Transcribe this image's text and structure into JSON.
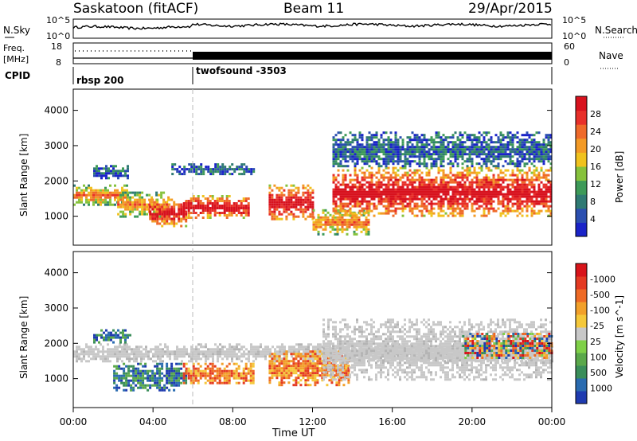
{
  "header": {
    "site": "Saskatoon (fitACF)",
    "beam": "Beam 11",
    "date": "29/Apr/2015"
  },
  "noise_panel": {
    "left_label": "N.Sky",
    "right_label": "N.Search",
    "left_ticks": [
      "10^5",
      "10^0"
    ],
    "right_ticks": [
      "10^5",
      "10^0"
    ]
  },
  "freq_panel": {
    "left_label_1": "Freq.",
    "left_label_2": "[MHz]",
    "left_ticks": [
      "18",
      "8"
    ],
    "right_label": "Nave",
    "right_ticks": [
      "60",
      "0"
    ]
  },
  "cpid_panel": {
    "label": "CPID",
    "programs": [
      {
        "name": "rbsp 200",
        "start_hour": 0
      },
      {
        "name": "twofsound -3503",
        "start_hour": 6
      }
    ]
  },
  "chart_data": [
    {
      "type": "heatmap",
      "panel": "power",
      "ylabel": "Slant Range [km]",
      "ylim": [
        180,
        4600
      ],
      "yticks": [
        1000,
        2000,
        3000,
        4000
      ],
      "colorbar": {
        "label": "Power [dB]",
        "ticks": [
          "4",
          "8",
          "12",
          "16",
          "20",
          "24",
          "28"
        ],
        "colors": [
          "#1a23c8",
          "#2b4fb0",
          "#2f7a73",
          "#3d9a58",
          "#86c23c",
          "#f0c21e",
          "#f39a26",
          "#ef6a2a",
          "#e8302a",
          "#d8121e"
        ]
      },
      "regions": [
        {
          "t": [
            0.0,
            2.7
          ],
          "r": [
            1350,
            1900
          ],
          "level": "mid"
        },
        {
          "t": [
            1.0,
            2.7
          ],
          "r": [
            2100,
            2450
          ],
          "level": "low"
        },
        {
          "t": [
            2.2,
            4.8
          ],
          "r": [
            1000,
            1700
          ],
          "level": "mid"
        },
        {
          "t": [
            3.8,
            5.6
          ],
          "r": [
            750,
            1500
          ],
          "level": "high"
        },
        {
          "t": [
            4.8,
            9.0
          ],
          "r": [
            2200,
            2500
          ],
          "level": "low"
        },
        {
          "t": [
            5.5,
            8.8
          ],
          "r": [
            950,
            1600
          ],
          "level": "high"
        },
        {
          "t": [
            9.8,
            12.0
          ],
          "r": [
            900,
            1900
          ],
          "level": "high"
        },
        {
          "t": [
            12.0,
            14.8
          ],
          "r": [
            500,
            1200
          ],
          "level": "mid"
        },
        {
          "t": [
            13.0,
            24.0
          ],
          "r": [
            1000,
            2400
          ],
          "level": "high"
        },
        {
          "t": [
            13.0,
            24.0
          ],
          "r": [
            2400,
            3400
          ],
          "level": "low"
        }
      ]
    },
    {
      "type": "heatmap",
      "panel": "velocity",
      "ylabel": "Slant Range [km]",
      "ylim": [
        180,
        4600
      ],
      "yticks": [
        1000,
        2000,
        3000,
        4000
      ],
      "colorbar": {
        "label": "Velocity [m s^-1]",
        "ticks": [
          "1000",
          "500",
          "100",
          "25",
          "-25",
          "-100",
          "-500",
          "-1000"
        ],
        "colors": [
          "#1f3bb0",
          "#2a6bb0",
          "#3a8e5a",
          "#5aa84a",
          "#7fd048",
          "#c8c8c8",
          "#f5c83a",
          "#f2a02a",
          "#ee6a25",
          "#e43a22",
          "#d8141a"
        ]
      },
      "regions": [
        {
          "t": [
            0.0,
            24.0
          ],
          "r": [
            1500,
            2000
          ],
          "level": "ground"
        },
        {
          "t": [
            1.0,
            2.8
          ],
          "r": [
            2050,
            2400
          ],
          "level": "positive"
        },
        {
          "t": [
            2.0,
            5.6
          ],
          "r": [
            700,
            1450
          ],
          "level": "positive"
        },
        {
          "t": [
            5.5,
            9.0
          ],
          "r": [
            850,
            1450
          ],
          "level": "negative"
        },
        {
          "t": [
            9.8,
            13.8
          ],
          "r": [
            800,
            1800
          ],
          "level": "negative"
        },
        {
          "t": [
            12.5,
            24.0
          ],
          "r": [
            1000,
            2700
          ],
          "level": "ground"
        },
        {
          "t": [
            19.5,
            24.0
          ],
          "r": [
            1600,
            2300
          ],
          "level": "mixed"
        }
      ]
    }
  ],
  "time_axis": {
    "label": "Time UT",
    "ticks": [
      "00:00",
      "04:00",
      "08:00",
      "12:00",
      "16:00",
      "20:00",
      "00:00"
    ],
    "range_hours": [
      0,
      24
    ]
  }
}
